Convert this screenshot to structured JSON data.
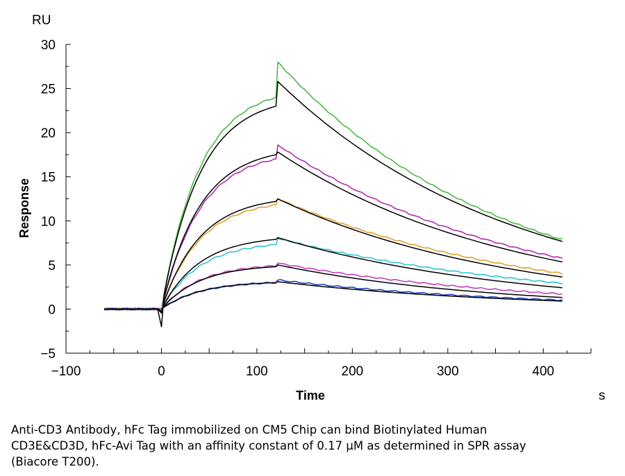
{
  "chart_data": {
    "type": "line",
    "y_unit": "RU",
    "x_unit": "s",
    "ylabel": "Response",
    "xlabel": "Time",
    "xlim": [
      -100,
      450
    ],
    "ylim": [
      -5,
      30
    ],
    "x_ticks": [
      -100,
      0,
      100,
      200,
      300,
      400
    ],
    "y_ticks": [
      -5,
      0,
      5,
      10,
      15,
      20,
      25,
      30
    ],
    "grid": false,
    "injection_end": 120,
    "series": [
      {
        "color": "#4db848",
        "plateau": 24.0,
        "peak": 28.0,
        "end": 7.8
      },
      {
        "color": "#b02fb0",
        "plateau": 17.0,
        "peak": 18.6,
        "end": 5.7
      },
      {
        "color": "#e0a030",
        "plateau": 11.8,
        "peak": 12.5,
        "end": 4.0
      },
      {
        "color": "#2fc4d0",
        "plateau": 7.3,
        "peak": 8.0,
        "end": 2.9
      },
      {
        "color": "#c040c0",
        "plateau": 4.9,
        "peak": 5.2,
        "end": 1.7
      },
      {
        "color": "#2040c0",
        "plateau": 3.0,
        "peak": 3.3,
        "end": 1.0
      }
    ],
    "fits": [
      {
        "color": "#000000",
        "plateau": 23.0,
        "peak": 25.8,
        "end": 7.6
      },
      {
        "color": "#000000",
        "plateau": 17.5,
        "peak": 17.8,
        "end": 5.3
      },
      {
        "color": "#000000",
        "plateau": 12.2,
        "peak": 12.5,
        "end": 3.6
      },
      {
        "color": "#000000",
        "plateau": 7.9,
        "peak": 8.1,
        "end": 2.4
      },
      {
        "color": "#000000",
        "plateau": 4.8,
        "peak": 5.0,
        "end": 1.3
      },
      {
        "color": "#000000",
        "plateau": 3.0,
        "peak": 3.1,
        "end": 0.9
      }
    ]
  },
  "caption": "Anti-CD3 Antibody, hFc Tag immobilized on CM5 Chip can bind Biotinylated Human CD3E&CD3D, hFc-Avi Tag with an affinity constant of 0.17 μM as determined in SPR assay (Biacore T200)."
}
